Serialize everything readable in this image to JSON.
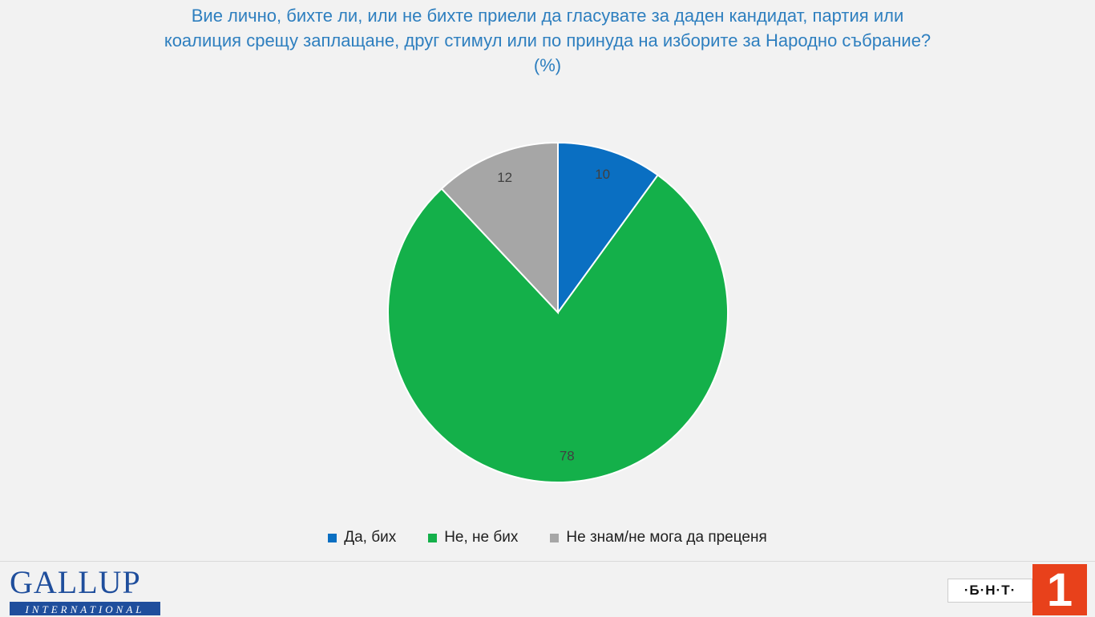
{
  "chart_data": {
    "type": "pie",
    "title_lines": [
      "Вие лично, бихте ли, или не бихте приели да гласувате за даден кандидат, партия или",
      "коалиция срещу заплащане, друг стимул или по принуда на изборите за Народно събрание?",
      "(%)"
    ],
    "categories": [
      "Да, бих",
      "Не, не бих",
      "Не знам/не мога да преценя"
    ],
    "values": [
      10,
      78,
      12
    ],
    "colors": [
      "#0a6fc2",
      "#14b04a",
      "#a6a6a6"
    ],
    "legend_position": "bottom"
  },
  "branding": {
    "gallup_name": "GALLUP",
    "gallup_sub": "INTERNATIONAL",
    "tv_name": "·Б·Н·Т·",
    "tv_channel": "1"
  }
}
